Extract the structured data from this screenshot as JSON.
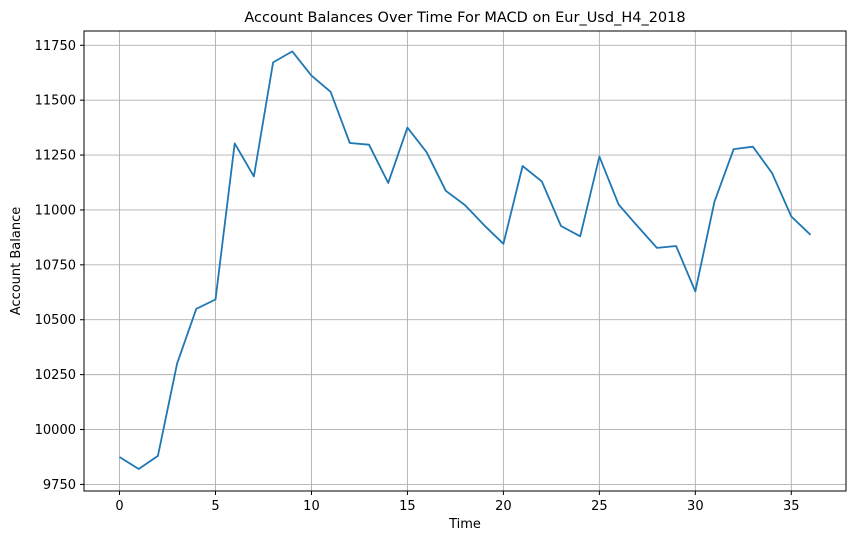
{
  "chart_data": {
    "type": "line",
    "title": "Account Balances Over Time For MACD on Eur_Usd_H4_2018",
    "xlabel": "Time",
    "ylabel": "Account Balance",
    "xlim": [
      -1.85,
      37.85
    ],
    "ylim": [
      9720,
      11815
    ],
    "xticks": [
      0,
      5,
      10,
      15,
      20,
      25,
      30,
      35
    ],
    "yticks": [
      9750,
      10000,
      10250,
      10500,
      10750,
      11000,
      11250,
      11500,
      11750
    ],
    "grid": true,
    "legend": "none",
    "line_color": "#1f77b4",
    "series": [
      {
        "x": [
          0,
          1,
          2,
          3,
          4,
          5,
          6,
          7,
          8,
          9,
          10,
          11,
          12,
          13,
          14,
          15,
          16,
          17,
          18,
          19,
          20,
          21,
          22,
          23,
          24,
          25,
          26,
          27,
          28,
          29,
          30,
          31,
          32,
          33,
          34,
          35,
          36
        ],
        "values": [
          9875,
          9820,
          9880,
          10300,
          10550,
          10592,
          11303,
          11153,
          11672,
          11722,
          11612,
          11538,
          11305,
          11297,
          11123,
          11375,
          11263,
          11087,
          11022,
          10930,
          10846,
          11200,
          11130,
          10927,
          10880,
          11243,
          11025,
          10925,
          10827,
          10836,
          10629,
          11038,
          11277,
          11288,
          11168,
          10970,
          10887
        ]
      }
    ]
  }
}
